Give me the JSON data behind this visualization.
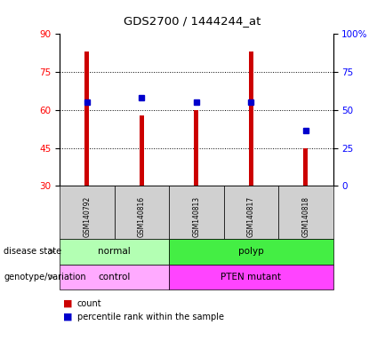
{
  "title": "GDS2700 / 1444244_at",
  "samples": [
    "GSM140792",
    "GSM140816",
    "GSM140813",
    "GSM140817",
    "GSM140818"
  ],
  "counts": [
    83,
    58,
    60,
    83,
    45
  ],
  "percentile_ranks": [
    63,
    65,
    63,
    63,
    52
  ],
  "ylim_left": [
    30,
    90
  ],
  "ylim_right": [
    0,
    100
  ],
  "yticks_left": [
    30,
    45,
    60,
    75,
    90
  ],
  "yticks_right": [
    0,
    25,
    50,
    75,
    100
  ],
  "yticklabels_right": [
    "0",
    "25",
    "50",
    "75",
    "100%"
  ],
  "bar_color": "#cc0000",
  "dot_color": "#0000cc",
  "bar_width": 0.08,
  "grid_yticks": [
    45,
    60,
    75
  ],
  "disease_color_normal": "#b3ffb3",
  "disease_color_polyp": "#44ee44",
  "genotype_color_control": "#ffaaff",
  "genotype_color_pten": "#ff44ff",
  "label_disease": "disease state",
  "label_genotype": "genotype/variation",
  "legend_count": "count",
  "legend_percentile": "percentile rank within the sample",
  "sample_box_color": "#d0d0d0"
}
